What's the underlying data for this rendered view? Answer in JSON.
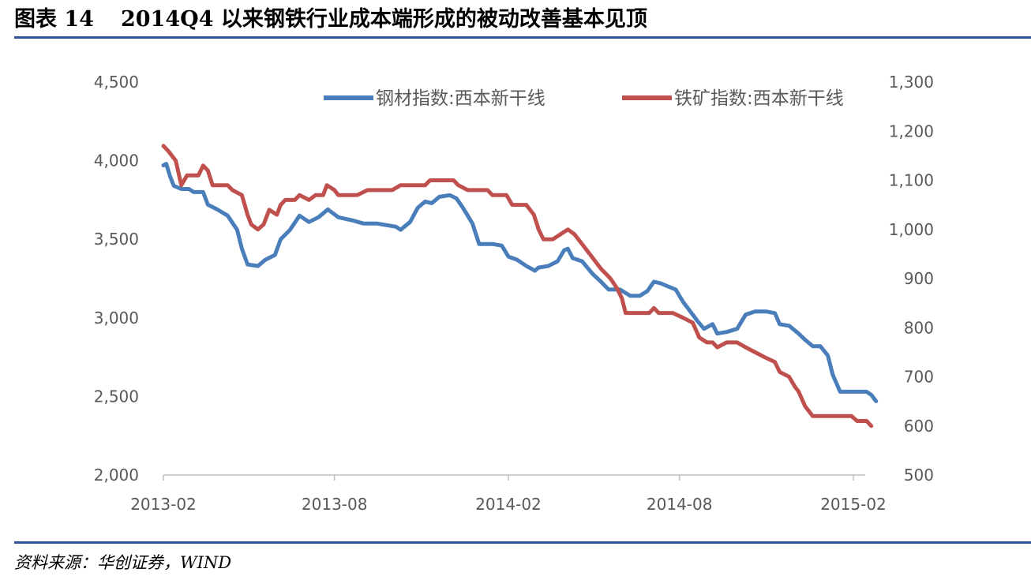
{
  "header": {
    "figure_label": "图表 14",
    "title": "2014Q4 以来钢铁行业成本端形成的被动改善基本见顶"
  },
  "footer": {
    "source": "资料来源：华创证券，WIND"
  },
  "chart_data": {
    "type": "line",
    "x_ticks": [
      "2013-02",
      "2013-08",
      "2014-02",
      "2014-08",
      "2015-02"
    ],
    "x_range": [
      "2013-02",
      "2015-02"
    ],
    "y_left": {
      "ticks": [
        "2,000",
        "2,500",
        "3,000",
        "3,500",
        "4,000",
        "4,500"
      ],
      "range": [
        2000,
        4500
      ]
    },
    "y_right": {
      "ticks": [
        "500",
        "600",
        "700",
        "800",
        "900",
        "1,000",
        "1,100",
        "1,200",
        "1,300"
      ],
      "range": [
        500,
        1300
      ]
    },
    "grid": false,
    "legend": "top-right",
    "series": [
      {
        "name": "钢材指数:西本新干线",
        "axis": "left",
        "color": "#4a7ebb",
        "points": [
          [
            "2013-02-01",
            3970
          ],
          [
            "2013-02-04",
            3980
          ],
          [
            "2013-02-08",
            3900
          ],
          [
            "2013-02-12",
            3840
          ],
          [
            "2013-02-20",
            3820
          ],
          [
            "2013-02-28",
            3820
          ],
          [
            "2013-03-05",
            3800
          ],
          [
            "2013-03-15",
            3800
          ],
          [
            "2013-03-20",
            3720
          ],
          [
            "2013-03-30",
            3690
          ],
          [
            "2013-04-10",
            3650
          ],
          [
            "2013-04-20",
            3560
          ],
          [
            "2013-04-25",
            3440
          ],
          [
            "2013-05-01",
            3340
          ],
          [
            "2013-05-12",
            3330
          ],
          [
            "2013-05-20",
            3370
          ],
          [
            "2013-05-30",
            3400
          ],
          [
            "2013-06-05",
            3500
          ],
          [
            "2013-06-15",
            3560
          ],
          [
            "2013-06-25",
            3650
          ],
          [
            "2013-07-05",
            3610
          ],
          [
            "2013-07-15",
            3640
          ],
          [
            "2013-07-25",
            3690
          ],
          [
            "2013-08-05",
            3640
          ],
          [
            "2013-08-20",
            3620
          ],
          [
            "2013-09-01",
            3600
          ],
          [
            "2013-09-15",
            3600
          ],
          [
            "2013-09-25",
            3590
          ],
          [
            "2013-10-05",
            3580
          ],
          [
            "2013-10-10",
            3560
          ],
          [
            "2013-10-20",
            3610
          ],
          [
            "2013-10-28",
            3700
          ],
          [
            "2013-11-05",
            3740
          ],
          [
            "2013-11-12",
            3730
          ],
          [
            "2013-11-20",
            3770
          ],
          [
            "2013-12-01",
            3780
          ],
          [
            "2013-12-08",
            3760
          ],
          [
            "2013-12-15",
            3700
          ],
          [
            "2013-12-25",
            3600
          ],
          [
            "2014-01-01",
            3470
          ],
          [
            "2014-01-15",
            3470
          ],
          [
            "2014-01-25",
            3460
          ],
          [
            "2014-02-01",
            3390
          ],
          [
            "2014-02-10",
            3370
          ],
          [
            "2014-02-20",
            3330
          ],
          [
            "2014-03-01",
            3300
          ],
          [
            "2014-03-05",
            3320
          ],
          [
            "2014-03-15",
            3330
          ],
          [
            "2014-03-25",
            3360
          ],
          [
            "2014-04-01",
            3430
          ],
          [
            "2014-04-05",
            3440
          ],
          [
            "2014-04-10",
            3380
          ],
          [
            "2014-04-20",
            3360
          ],
          [
            "2014-05-01",
            3280
          ],
          [
            "2014-05-10",
            3230
          ],
          [
            "2014-05-18",
            3180
          ],
          [
            "2014-05-30",
            3180
          ],
          [
            "2014-06-10",
            3140
          ],
          [
            "2014-06-20",
            3140
          ],
          [
            "2014-06-28",
            3170
          ],
          [
            "2014-07-05",
            3230
          ],
          [
            "2014-07-12",
            3220
          ],
          [
            "2014-07-20",
            3200
          ],
          [
            "2014-07-28",
            3180
          ],
          [
            "2014-08-05",
            3100
          ],
          [
            "2014-08-15",
            3020
          ],
          [
            "2014-08-20",
            2980
          ],
          [
            "2014-08-27",
            2930
          ],
          [
            "2014-09-05",
            2960
          ],
          [
            "2014-09-10",
            2900
          ],
          [
            "2014-09-20",
            2910
          ],
          [
            "2014-10-01",
            2930
          ],
          [
            "2014-10-10",
            3020
          ],
          [
            "2014-10-20",
            3040
          ],
          [
            "2014-11-01",
            3040
          ],
          [
            "2014-11-10",
            3030
          ],
          [
            "2014-11-15",
            2960
          ],
          [
            "2014-11-25",
            2950
          ],
          [
            "2014-12-05",
            2900
          ],
          [
            "2014-12-12",
            2860
          ],
          [
            "2014-12-20",
            2820
          ],
          [
            "2014-12-28",
            2820
          ],
          [
            "2015-01-05",
            2760
          ],
          [
            "2015-01-10",
            2640
          ],
          [
            "2015-01-18",
            2530
          ],
          [
            "2015-01-25",
            2530
          ],
          [
            "2015-02-05",
            2530
          ],
          [
            "2015-02-15",
            2530
          ],
          [
            "2015-02-20",
            2510
          ],
          [
            "2015-02-25",
            2470
          ]
        ]
      },
      {
        "name": "铁矿指数:西本新干线",
        "axis": "right",
        "color": "#c0504d",
        "points": [
          [
            "2013-02-01",
            1170
          ],
          [
            "2013-02-06",
            1160
          ],
          [
            "2013-02-14",
            1140
          ],
          [
            "2013-02-20",
            1090
          ],
          [
            "2013-02-26",
            1110
          ],
          [
            "2013-03-10",
            1110
          ],
          [
            "2013-03-15",
            1130
          ],
          [
            "2013-03-20",
            1120
          ],
          [
            "2013-03-25",
            1090
          ],
          [
            "2013-04-10",
            1090
          ],
          [
            "2013-04-15",
            1080
          ],
          [
            "2013-04-25",
            1070
          ],
          [
            "2013-05-01",
            1030
          ],
          [
            "2013-05-05",
            1010
          ],
          [
            "2013-05-12",
            1000
          ],
          [
            "2013-05-18",
            1010
          ],
          [
            "2013-05-24",
            1040
          ],
          [
            "2013-06-01",
            1030
          ],
          [
            "2013-06-05",
            1050
          ],
          [
            "2013-06-10",
            1060
          ],
          [
            "2013-06-20",
            1060
          ],
          [
            "2013-06-25",
            1070
          ],
          [
            "2013-07-05",
            1060
          ],
          [
            "2013-07-12",
            1070
          ],
          [
            "2013-07-20",
            1070
          ],
          [
            "2013-07-24",
            1090
          ],
          [
            "2013-08-01",
            1080
          ],
          [
            "2013-08-05",
            1070
          ],
          [
            "2013-08-15",
            1070
          ],
          [
            "2013-08-25",
            1070
          ],
          [
            "2013-09-05",
            1080
          ],
          [
            "2013-09-20",
            1080
          ],
          [
            "2013-10-01",
            1080
          ],
          [
            "2013-10-10",
            1090
          ],
          [
            "2013-10-25",
            1090
          ],
          [
            "2013-11-05",
            1090
          ],
          [
            "2013-11-10",
            1100
          ],
          [
            "2013-11-25",
            1100
          ],
          [
            "2013-12-05",
            1100
          ],
          [
            "2013-12-10",
            1090
          ],
          [
            "2013-12-20",
            1080
          ],
          [
            "2014-01-10",
            1080
          ],
          [
            "2014-01-15",
            1070
          ],
          [
            "2014-01-30",
            1070
          ],
          [
            "2014-02-05",
            1050
          ],
          [
            "2014-02-20",
            1050
          ],
          [
            "2014-02-28",
            1030
          ],
          [
            "2014-03-05",
            1000
          ],
          [
            "2014-03-10",
            980
          ],
          [
            "2014-03-20",
            980
          ],
          [
            "2014-03-28",
            990
          ],
          [
            "2014-04-05",
            1000
          ],
          [
            "2014-04-12",
            990
          ],
          [
            "2014-04-20",
            970
          ],
          [
            "2014-04-28",
            950
          ],
          [
            "2014-05-10",
            920
          ],
          [
            "2014-05-15",
            910
          ],
          [
            "2014-05-20",
            900
          ],
          [
            "2014-05-27",
            880
          ],
          [
            "2014-06-01",
            860
          ],
          [
            "2014-06-05",
            830
          ],
          [
            "2014-06-15",
            830
          ],
          [
            "2014-06-30",
            830
          ],
          [
            "2014-07-05",
            840
          ],
          [
            "2014-07-10",
            830
          ],
          [
            "2014-07-25",
            830
          ],
          [
            "2014-08-05",
            820
          ],
          [
            "2014-08-15",
            810
          ],
          [
            "2014-08-22",
            780
          ],
          [
            "2014-08-30",
            770
          ],
          [
            "2014-09-05",
            770
          ],
          [
            "2014-09-10",
            760
          ],
          [
            "2014-09-20",
            770
          ],
          [
            "2014-10-01",
            770
          ],
          [
            "2014-10-10",
            760
          ],
          [
            "2014-10-20",
            750
          ],
          [
            "2014-10-30",
            740
          ],
          [
            "2014-11-10",
            730
          ],
          [
            "2014-11-15",
            710
          ],
          [
            "2014-11-25",
            700
          ],
          [
            "2014-12-01",
            680
          ],
          [
            "2014-12-05",
            670
          ],
          [
            "2014-12-12",
            640
          ],
          [
            "2014-12-20",
            620
          ],
          [
            "2015-01-05",
            620
          ],
          [
            "2015-01-20",
            620
          ],
          [
            "2015-01-30",
            620
          ],
          [
            "2015-02-05",
            610
          ],
          [
            "2015-02-15",
            610
          ],
          [
            "2015-02-20",
            600
          ]
        ]
      }
    ]
  }
}
